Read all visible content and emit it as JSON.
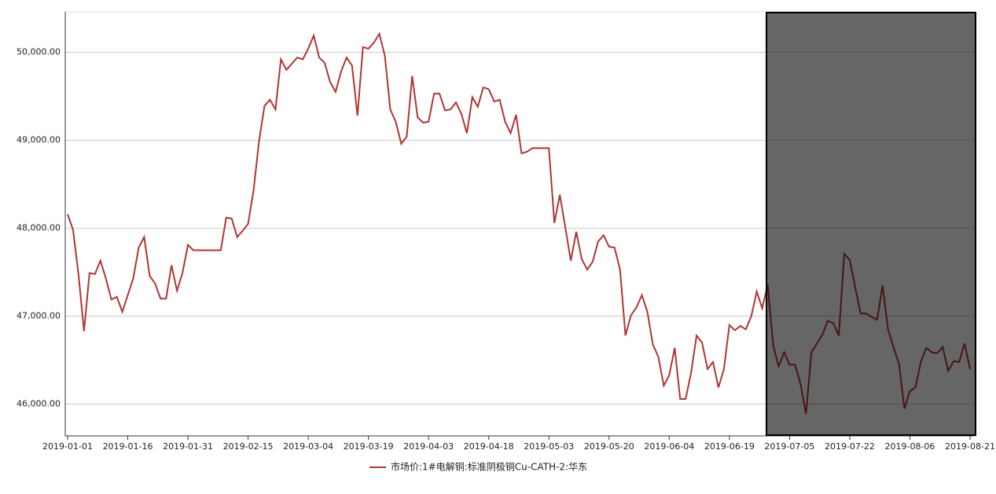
{
  "chart_data": {
    "type": "line",
    "categories": [
      "2019-01-01",
      null,
      null,
      null,
      null,
      null,
      null,
      null,
      null,
      null,
      null,
      "2019-01-16",
      null,
      null,
      null,
      null,
      null,
      null,
      null,
      null,
      null,
      null,
      "2019-01-31",
      null,
      null,
      null,
      null,
      null,
      null,
      null,
      null,
      null,
      null,
      "2019-02-15",
      null,
      null,
      null,
      null,
      null,
      null,
      null,
      null,
      null,
      null,
      "2019-03-04",
      null,
      null,
      null,
      null,
      null,
      null,
      null,
      null,
      null,
      null,
      "2019-03-19",
      null,
      null,
      null,
      null,
      null,
      null,
      null,
      null,
      null,
      null,
      "2019-04-03",
      null,
      null,
      null,
      null,
      null,
      null,
      null,
      null,
      null,
      null,
      "2019-04-18",
      null,
      null,
      null,
      null,
      null,
      null,
      null,
      null,
      null,
      null,
      "2019-05-03",
      null,
      null,
      null,
      null,
      null,
      null,
      null,
      null,
      null,
      null,
      "2019-05-20",
      null,
      null,
      null,
      null,
      null,
      null,
      null,
      null,
      null,
      null,
      "2019-06-04",
      null,
      null,
      null,
      null,
      null,
      null,
      null,
      null,
      null,
      null,
      "2019-06-19",
      null,
      null,
      null,
      null,
      null,
      null,
      null,
      null,
      null,
      null,
      "2019-07-05",
      null,
      null,
      null,
      null,
      null,
      null,
      null,
      null,
      null,
      null,
      "2019-07-22",
      null,
      null,
      null,
      null,
      null,
      null,
      null,
      null,
      null,
      null,
      "2019-08-06",
      null,
      null,
      null,
      null,
      null,
      null,
      null,
      null,
      null,
      null,
      "2019-08-21"
    ],
    "series": [
      {
        "name": "市场价:1#电解铜:标准阴极铜Cu-CATH-2:华东",
        "color": "#b03535",
        "values": [
          48160,
          47980,
          47470,
          46830,
          47490,
          47480,
          47630,
          47430,
          47190,
          47220,
          47050,
          47240,
          47430,
          47780,
          47900,
          47460,
          47370,
          47200,
          47200,
          47580,
          47290,
          47490,
          47810,
          47750,
          47750,
          47750,
          47750,
          47750,
          47750,
          48120,
          48110,
          47900,
          47970,
          48050,
          48430,
          48990,
          49390,
          49460,
          49350,
          49920,
          49800,
          49870,
          49940,
          49920,
          50040,
          50190,
          49940,
          49880,
          49660,
          49550,
          49780,
          49940,
          49850,
          49280,
          50060,
          50040,
          50110,
          50210,
          49960,
          49350,
          49210,
          48960,
          49040,
          49730,
          49260,
          49200,
          49210,
          49530,
          49530,
          49340,
          49350,
          49430,
          49300,
          49080,
          49490,
          49380,
          49600,
          49580,
          49440,
          49460,
          49210,
          49080,
          49290,
          48850,
          48870,
          48910,
          48910,
          48910,
          48910,
          48060,
          48380,
          48010,
          47630,
          47960,
          47650,
          47530,
          47620,
          47850,
          47920,
          47790,
          47780,
          47530,
          46780,
          47010,
          47100,
          47240,
          47050,
          46680,
          46540,
          46210,
          46330,
          46640,
          46060,
          46060,
          46360,
          46780,
          46700,
          46400,
          46480,
          46190,
          46400,
          46900,
          46840,
          46890,
          46850,
          47000,
          47280,
          47090,
          47360,
          46670,
          46430,
          46590,
          46450,
          46450,
          46230,
          45890,
          46590,
          46690,
          46790,
          46950,
          46920,
          46780,
          47710,
          47640,
          47330,
          47030,
          47030,
          46990,
          46960,
          47350,
          46850,
          46650,
          46460,
          45950,
          46150,
          46190,
          46480,
          46640,
          46590,
          46580,
          46650,
          46380,
          46490,
          46480,
          46690,
          46400
        ]
      }
    ],
    "ylim": [
      45640,
      50460
    ],
    "yticks": [
      {
        "value": 46000,
        "label": "46,000.00"
      },
      {
        "value": 47000,
        "label": "47,000.00"
      },
      {
        "value": 48000,
        "label": "48,000.00"
      },
      {
        "value": 49000,
        "label": "49,000.00"
      },
      {
        "value": 50000,
        "label": "50,000.00"
      }
    ],
    "grid": true
  }
}
